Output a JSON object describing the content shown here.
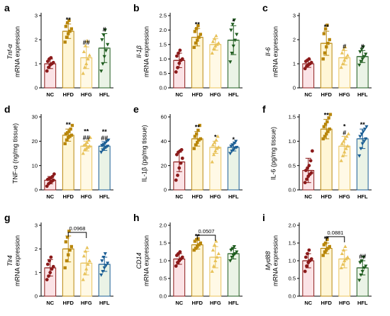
{
  "colors": {
    "NC": "#8B1A1A",
    "HFD": "#B8860B",
    "HFG": "#E8C25A",
    "HFL": "#1F5C1F",
    "HFL_blue": "#1B5E94",
    "bar_fills": [
      "#FBE3E6",
      "#FFF6D6",
      "#FFF9E6",
      "#EAF3E6"
    ]
  },
  "chart_data": [
    {
      "type": "bar",
      "letter": "a",
      "ylabel_top": "Tnf-α",
      "ylabel_bottom": "mRNA expression",
      "categories": [
        "NC",
        "HFD",
        "HFG",
        "HFL"
      ],
      "ylim": [
        0,
        3
      ],
      "yticks": [
        "0",
        "1",
        "2",
        "3"
      ],
      "values": [
        1.0,
        2.35,
        1.25,
        1.65
      ],
      "errors": [
        0.2,
        0.3,
        0.45,
        0.6
      ],
      "sig": [
        "",
        "**",
        "##",
        "#"
      ],
      "points": [
        [
          0.7,
          0.85,
          0.95,
          1.0,
          1.05,
          1.1,
          1.2,
          1.25
        ],
        [
          1.9,
          2.1,
          2.25,
          2.35,
          2.45,
          2.55,
          2.7,
          2.8
        ],
        [
          0.6,
          0.85,
          1.0,
          1.2,
          1.35,
          1.5,
          1.75,
          1.95
        ],
        [
          0.7,
          1.0,
          1.3,
          1.55,
          1.8,
          2.0,
          2.2,
          2.4
        ]
      ],
      "bracket": null
    },
    {
      "type": "bar",
      "letter": "b",
      "ylabel_top": "Il-1β",
      "ylabel_bottom": "mRNA expression",
      "categories": [
        "NC",
        "HFD",
        "HFG",
        "HFL"
      ],
      "ylim": [
        0,
        2.5
      ],
      "yticks": [
        "0.0",
        "0.5",
        "1.0",
        "1.5",
        "2.0",
        "2.5"
      ],
      "values": [
        0.95,
        1.75,
        1.5,
        1.65
      ],
      "errors": [
        0.25,
        0.3,
        0.2,
        0.5
      ],
      "sig": [
        "",
        "**",
        "",
        "*"
      ],
      "points": [
        [
          0.55,
          0.7,
          0.85,
          0.95,
          1.0,
          1.1,
          1.2,
          1.3
        ],
        [
          1.4,
          1.55,
          1.65,
          1.75,
          1.85,
          1.95,
          2.05,
          2.15
        ],
        [
          1.2,
          1.35,
          1.45,
          1.5,
          1.55,
          1.6,
          1.7,
          1.8
        ],
        [
          0.9,
          1.2,
          1.45,
          1.65,
          1.85,
          2.0,
          2.2,
          2.35
        ]
      ],
      "bracket": null
    },
    {
      "type": "bar",
      "letter": "c",
      "ylabel_top": "Il-6",
      "ylabel_bottom": "mRNA expression",
      "categories": [
        "NC",
        "HFD",
        "HFG",
        "HFL"
      ],
      "ylim": [
        0,
        3
      ],
      "yticks": [
        "0",
        "1",
        "2",
        "3"
      ],
      "values": [
        1.0,
        1.85,
        1.25,
        1.3
      ],
      "errors": [
        0.15,
        0.5,
        0.3,
        0.25
      ],
      "sig": [
        "",
        "**",
        "#",
        "#"
      ],
      "points": [
        [
          0.8,
          0.9,
          0.95,
          1.0,
          1.05,
          1.1,
          1.15,
          1.2
        ],
        [
          1.2,
          1.45,
          1.7,
          1.85,
          2.0,
          2.25,
          2.45,
          2.6
        ],
        [
          0.85,
          1.0,
          1.15,
          1.25,
          1.35,
          1.45,
          1.6,
          1.7
        ],
        [
          0.95,
          1.1,
          1.2,
          1.3,
          1.4,
          1.5,
          1.6,
          1.7
        ]
      ],
      "bracket": null
    },
    {
      "type": "bar",
      "letter": "d",
      "ylabel_top": "",
      "ylabel_bottom": "TNF-α (ng/mg tissue)",
      "categories": [
        "NC",
        "HFD",
        "HFG",
        "HFL"
      ],
      "ylim": [
        0,
        30
      ],
      "yticks": [
        "0",
        "10",
        "20",
        "30"
      ],
      "values": [
        4.0,
        22.5,
        18.0,
        18.0
      ],
      "errors": [
        1.5,
        2.5,
        2.0,
        1.8
      ],
      "sig": [
        "",
        "**",
        "**\n##",
        "**\n##"
      ],
      "points": [
        [
          1.5,
          2.5,
          3.0,
          3.5,
          4.0,
          4.3,
          4.7,
          5.0,
          5.5,
          6.5
        ],
        [
          19.0,
          20.5,
          21.5,
          22.0,
          22.5,
          23.0,
          23.5,
          24.0,
          25.0,
          26.5
        ],
        [
          15.0,
          16.5,
          17.0,
          17.5,
          18.0,
          18.3,
          18.8,
          19.5,
          20.5,
          21.5
        ],
        [
          15.5,
          16.5,
          17.0,
          17.5,
          18.0,
          18.3,
          18.7,
          19.2,
          20.0,
          20.5
        ]
      ],
      "bracket": null
    },
    {
      "type": "bar",
      "letter": "e",
      "ylabel_top": "",
      "ylabel_bottom": "IL-1β (pg/mg tissue)",
      "categories": [
        "NC",
        "HFD",
        "HFG",
        "HFL"
      ],
      "ylim": [
        0,
        60
      ],
      "yticks": [
        "0",
        "20",
        "40",
        "60"
      ],
      "values": [
        23.0,
        42.0,
        35.0,
        35.0
      ],
      "errors": [
        8.0,
        6.0,
        5.0,
        3.0
      ],
      "sig": [
        "",
        "**",
        "*",
        "*"
      ],
      "points": [
        [
          8.0,
          12.0,
          18.0,
          22.0,
          26.0,
          29.0,
          31.0,
          32.0,
          33.0
        ],
        [
          34.0,
          37.0,
          39.0,
          41.0,
          42.0,
          44.0,
          46.0,
          49.0,
          53.0
        ],
        [
          23.0,
          29.0,
          32.0,
          34.0,
          35.0,
          37.0,
          39.0,
          41.0,
          44.0
        ],
        [
          30.0,
          32.0,
          33.0,
          34.5,
          35.0,
          36.0,
          37.0,
          38.5,
          40.0
        ]
      ],
      "bracket": null
    },
    {
      "type": "bar",
      "letter": "f",
      "ylabel_top": "",
      "ylabel_bottom": "IL-6 (pg/mg tissue)",
      "categories": [
        "NC",
        "HFD",
        "HFG",
        "HFL"
      ],
      "ylim": [
        0,
        1.5
      ],
      "yticks": [
        "0.0",
        "0.5",
        "1.0",
        "1.5"
      ],
      "values": [
        0.4,
        1.25,
        0.9,
        1.05
      ],
      "errors": [
        0.25,
        0.2,
        0.2,
        0.2
      ],
      "sig": [
        "",
        "**",
        "*\n#",
        "**"
      ],
      "points": [
        [
          0.15,
          0.22,
          0.28,
          0.32,
          0.35,
          0.4,
          0.45,
          0.5,
          0.6,
          0.8
        ],
        [
          1.05,
          1.1,
          1.15,
          1.2,
          1.25,
          1.3,
          1.35,
          1.4,
          1.48,
          1.55
        ],
        [
          0.6,
          0.7,
          0.78,
          0.85,
          0.9,
          0.95,
          1.0,
          1.05,
          1.1,
          1.15
        ],
        [
          0.7,
          0.85,
          0.95,
          1.0,
          1.05,
          1.1,
          1.15,
          1.2,
          1.25,
          1.3
        ]
      ],
      "bracket": null
    },
    {
      "type": "bar",
      "letter": "g",
      "ylabel_top": "Tlr4",
      "ylabel_bottom": "mRNA expression",
      "categories": [
        "NC",
        "HFD",
        "HFG",
        "HFL"
      ],
      "ylim": [
        0,
        3
      ],
      "yticks": [
        "0",
        "1",
        "2",
        "3"
      ],
      "values": [
        1.2,
        2.0,
        1.4,
        1.35
      ],
      "errors": [
        0.35,
        0.55,
        0.5,
        0.3
      ],
      "sig": [
        "",
        "",
        "",
        ""
      ],
      "points": [
        [
          0.7,
          0.85,
          1.0,
          1.15,
          1.25,
          1.35,
          1.5,
          1.65
        ],
        [
          1.2,
          1.5,
          1.75,
          1.95,
          2.1,
          2.3,
          2.5,
          2.75
        ],
        [
          0.7,
          0.95,
          1.15,
          1.35,
          1.5,
          1.7,
          1.9,
          2.05
        ],
        [
          0.9,
          1.05,
          1.2,
          1.3,
          1.4,
          1.5,
          1.65,
          1.8
        ]
      ],
      "bracket": {
        "from": 1,
        "to": 2,
        "y": 2.7,
        "label": "0.0968"
      }
    },
    {
      "type": "bar",
      "letter": "h",
      "ylabel_top": "CD14",
      "ylabel_bottom": "mRNA expression",
      "categories": [
        "NC",
        "HFD",
        "HFG",
        "HFL"
      ],
      "ylim": [
        0,
        2.0
      ],
      "yticks": [
        "0.0",
        "0.5",
        "1.0",
        "1.5",
        "2.0"
      ],
      "values": [
        1.05,
        1.45,
        1.1,
        1.2
      ],
      "errors": [
        0.15,
        0.12,
        0.3,
        0.15
      ],
      "sig": [
        "",
        "**",
        "",
        ""
      ],
      "points": [
        [
          0.85,
          0.95,
          1.0,
          1.05,
          1.1,
          1.15,
          1.2,
          1.25
        ],
        [
          1.3,
          1.35,
          1.4,
          1.45,
          1.5,
          1.55,
          1.6,
          1.62
        ],
        [
          0.7,
          0.85,
          1.0,
          1.1,
          1.2,
          1.3,
          1.45,
          1.55
        ],
        [
          1.0,
          1.1,
          1.15,
          1.2,
          1.25,
          1.3,
          1.35,
          1.4
        ]
      ],
      "bracket": {
        "from": 1,
        "to": 2,
        "y": 1.72,
        "label": "0.0507"
      }
    },
    {
      "type": "bar",
      "letter": "i",
      "ylabel_top": "Myd88",
      "ylabel_bottom": "mRNA expression",
      "categories": [
        "NC",
        "HFD",
        "HFG",
        "HFL"
      ],
      "ylim": [
        0,
        2.0
      ],
      "yticks": [
        "0.0",
        "0.5",
        "1.0",
        "1.5",
        "2.0"
      ],
      "values": [
        1.0,
        1.35,
        1.05,
        0.8
      ],
      "errors": [
        0.2,
        0.15,
        0.25,
        0.2
      ],
      "sig": [
        "",
        "**",
        "",
        "##"
      ],
      "points": [
        [
          0.7,
          0.85,
          0.95,
          1.0,
          1.05,
          1.1,
          1.2,
          1.3
        ],
        [
          1.15,
          1.25,
          1.3,
          1.35,
          1.4,
          1.45,
          1.5,
          1.6
        ],
        [
          0.8,
          0.9,
          1.0,
          1.05,
          1.1,
          1.2,
          1.3,
          1.4
        ],
        [
          0.45,
          0.6,
          0.7,
          0.8,
          0.85,
          0.95,
          1.0,
          1.1
        ]
      ],
      "bracket": {
        "from": 1,
        "to": 2,
        "y": 1.68,
        "label": "0.0881"
      }
    }
  ]
}
